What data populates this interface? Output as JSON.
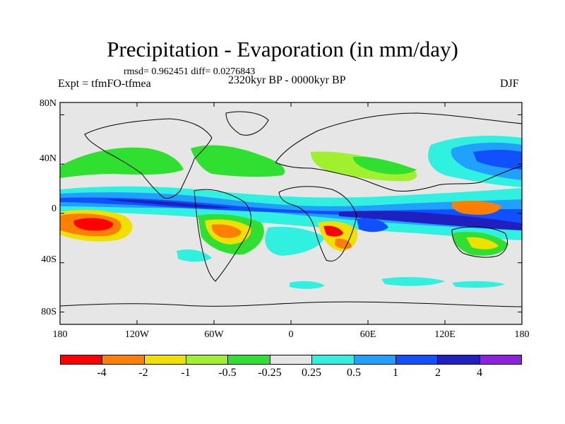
{
  "title": "Precipitation - Evaporation (in mm/day)",
  "stats": "rmsd= 0.962451  diff= 0.0276843",
  "experiment": "Expt = tfmFO-tfmea",
  "period": "2320kyr BP - 0000kyr BP",
  "season": "DJF",
  "y_axis": {
    "labels": [
      "80N",
      "40N",
      "0",
      "40S",
      "80S"
    ],
    "values": [
      80,
      40,
      0,
      -40,
      -80
    ]
  },
  "x_axis": {
    "labels": [
      "180",
      "120W",
      "60W",
      "0",
      "60E",
      "120E",
      "180"
    ],
    "values": [
      -180,
      -120,
      -60,
      0,
      60,
      120,
      180
    ]
  },
  "colorbar": {
    "colors": [
      "#ff0000",
      "#ff8000",
      "#f0e000",
      "#a0f030",
      "#30e030",
      "#e6e6e6",
      "#30f0e0",
      "#20a0ff",
      "#1050ff",
      "#2020c0",
      "#9020e0"
    ],
    "labels": [
      "-4",
      "-2",
      "-1",
      "-0.5",
      "-0.25",
      "0.25",
      "0.5",
      "1",
      "2",
      "4"
    ]
  }
}
